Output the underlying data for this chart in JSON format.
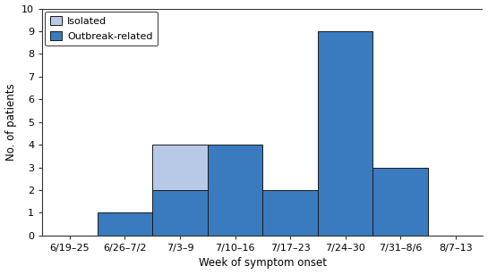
{
  "categories": [
    "6/19–25",
    "6/26–7/2",
    "7/3–9",
    "7/10–16",
    "7/17–23",
    "7/24–30",
    "7/31–8/6",
    "8/7–13"
  ],
  "outbreak_values": [
    0,
    1,
    2,
    4,
    2,
    9,
    3,
    0
  ],
  "isolated_values": [
    0,
    0,
    2,
    0,
    0,
    0,
    0,
    0
  ],
  "outbreak_color": "#3a7abf",
  "isolated_color": "#b8c9e8",
  "edge_color": "#1a1a1a",
  "ylabel": "No. of patients",
  "xlabel": "Week of symptom onset",
  "ylim": [
    0,
    10
  ],
  "yticks": [
    0,
    1,
    2,
    3,
    4,
    5,
    6,
    7,
    8,
    9,
    10
  ],
  "legend_isolated": "Isolated",
  "legend_outbreak": "Outbreak-related",
  "background_color": "#ffffff",
  "label_fontsize": 8.5,
  "tick_fontsize": 8.0
}
